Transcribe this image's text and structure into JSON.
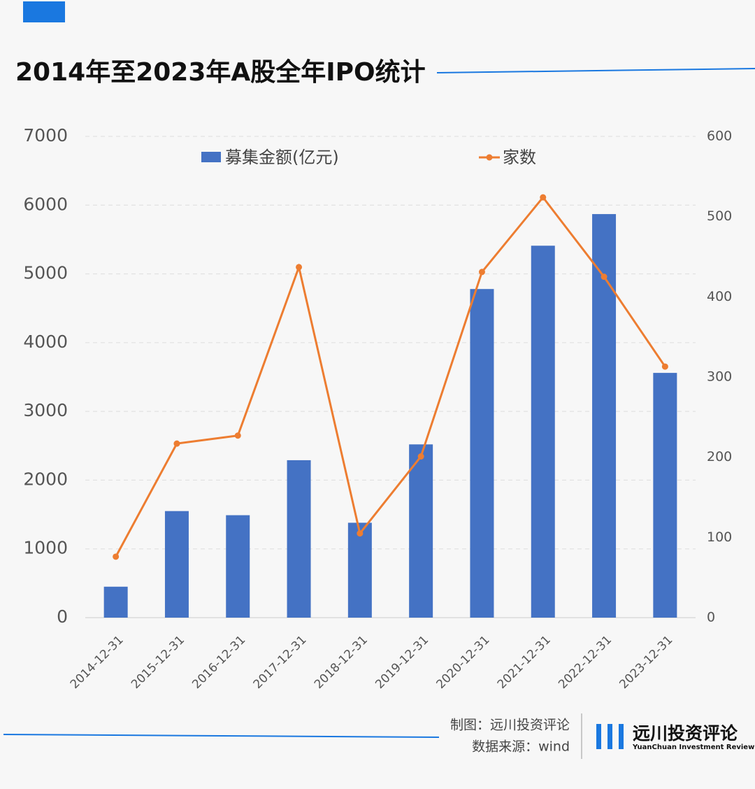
{
  "chart_data": {
    "type": "bar-line",
    "title": "2014年至2023年A股全年IPO统计",
    "categories": [
      "2014-12-31",
      "2015-12-31",
      "2016-12-31",
      "2017-12-31",
      "2018-12-31",
      "2019-12-31",
      "2020-12-31",
      "2021-12-31",
      "2022-12-31",
      "2023-12-31"
    ],
    "series": [
      {
        "name": "募集金额(亿元)",
        "color": "#4472c4",
        "type": "bar",
        "values": [
          450,
          1550,
          1490,
          2290,
          1380,
          2520,
          4780,
          5410,
          5870,
          3560
        ]
      },
      {
        "name": "家数",
        "color": "#ed7d31",
        "type": "line",
        "axis": "y2",
        "values": [
          76,
          217,
          227,
          437,
          105,
          201,
          431,
          524,
          425,
          313
        ]
      }
    ],
    "ylim": [
      0,
      7000
    ],
    "yticks": [
      0,
      1000,
      2000,
      3000,
      4000,
      5000,
      6000,
      7000
    ],
    "y2lim": [
      0,
      600
    ],
    "y2ticks": [
      0,
      100,
      200,
      300,
      400,
      500,
      600
    ],
    "grid": true
  },
  "footer": {
    "credit": "制图：远川投资评论",
    "source": "数据来源：wind",
    "brand": "远川投资评论",
    "brand_en": "YuanChuan Investment Review"
  }
}
